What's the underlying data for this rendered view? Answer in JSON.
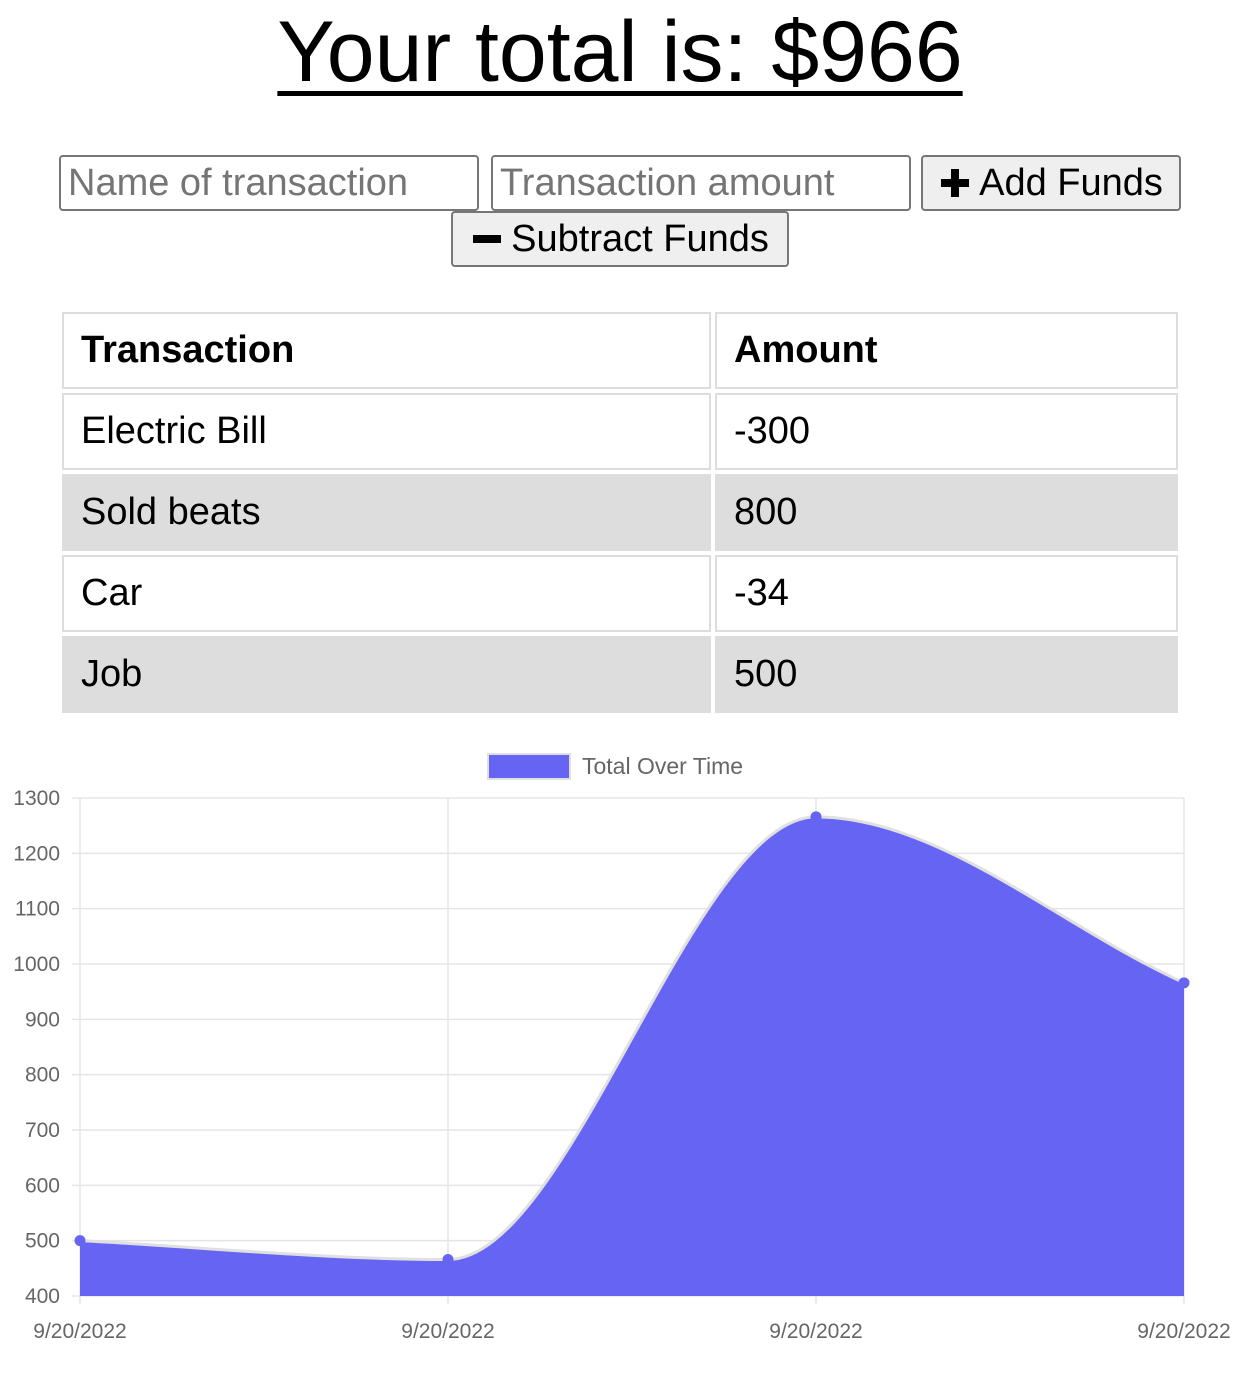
{
  "header": {
    "total_label": "Your total is: $966"
  },
  "form": {
    "name_placeholder": "Name of transaction",
    "amount_placeholder": "Transaction amount",
    "add_label": "Add Funds",
    "subtract_label": "Subtract Funds",
    "add_icon": "plus-icon",
    "subtract_icon": "minus-icon"
  },
  "table": {
    "headers": [
      "Transaction",
      "Amount"
    ],
    "rows": [
      [
        "Electric Bill",
        "-300"
      ],
      [
        "Sold beats",
        "800"
      ],
      [
        "Car",
        "-34"
      ],
      [
        "Job",
        "500"
      ]
    ]
  },
  "chart_data": {
    "type": "area",
    "title": "",
    "xlabel": "",
    "ylabel": "",
    "x": [
      "9/20/2022",
      "9/20/2022",
      "9/20/2022",
      "9/20/2022"
    ],
    "series": [
      {
        "name": "Total Over Time",
        "values": [
          500,
          466,
          1266,
          966
        ],
        "color": "#6665f3",
        "line_color": "#e0e0e0"
      }
    ],
    "ylim": [
      400,
      1300
    ],
    "yticks": [
      400,
      500,
      600,
      700,
      800,
      900,
      1000,
      1100,
      1200,
      1300
    ],
    "grid": true,
    "legend": "top-center"
  }
}
